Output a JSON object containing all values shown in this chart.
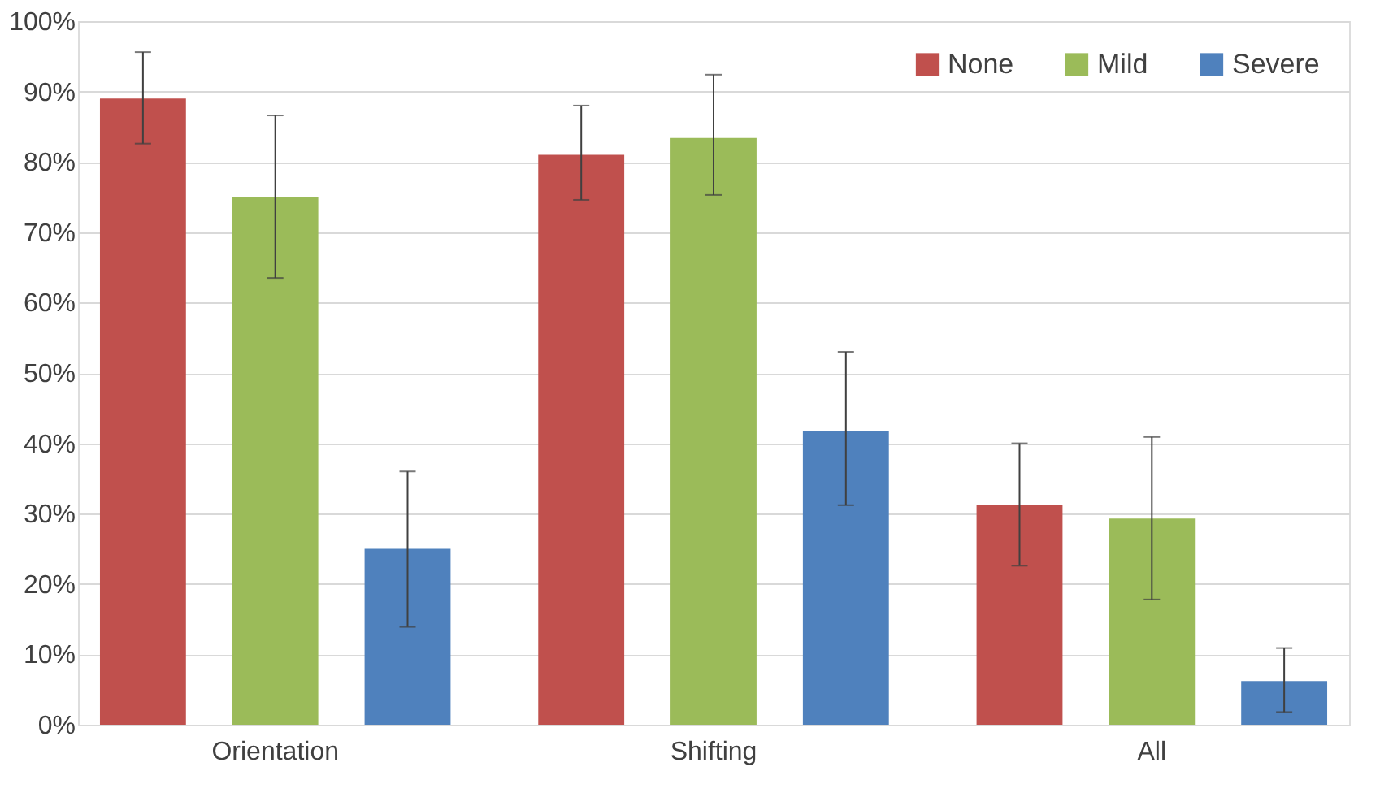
{
  "chart_data": {
    "type": "bar",
    "categories": [
      "Orientation",
      "Shifting",
      "All"
    ],
    "series": [
      {
        "name": "None",
        "color": "#c0504d",
        "values": [
          89,
          81,
          31.2
        ],
        "errors": [
          [
            82.6,
            95.6
          ],
          [
            74.6,
            88
          ],
          [
            22.6,
            40
          ]
        ]
      },
      {
        "name": "Mild",
        "color": "#9bbb59",
        "values": [
          75,
          83.4,
          29.3
        ],
        "errors": [
          [
            63.5,
            86.6
          ],
          [
            75.3,
            92.4
          ],
          [
            17.8,
            40.9
          ]
        ]
      },
      {
        "name": "Severe",
        "color": "#4f81bd",
        "values": [
          25,
          41.8,
          6.2
        ],
        "errors": [
          [
            13.9,
            36
          ],
          [
            31.2,
            53
          ],
          [
            1.8,
            10.9
          ]
        ]
      }
    ],
    "ylim": [
      0,
      100
    ],
    "yticks": [
      {
        "value": 0,
        "label": "0%"
      },
      {
        "value": 10,
        "label": "10%"
      },
      {
        "value": 20,
        "label": "20%"
      },
      {
        "value": 30,
        "label": "30%"
      },
      {
        "value": 40,
        "label": "40%"
      },
      {
        "value": 50,
        "label": "50%"
      },
      {
        "value": 60,
        "label": "60%"
      },
      {
        "value": 70,
        "label": "70%"
      },
      {
        "value": 80,
        "label": "80%"
      },
      {
        "value": 90,
        "label": "90%"
      },
      {
        "value": 100,
        "label": "100%"
      }
    ],
    "grid": "y",
    "legend": "top right"
  }
}
